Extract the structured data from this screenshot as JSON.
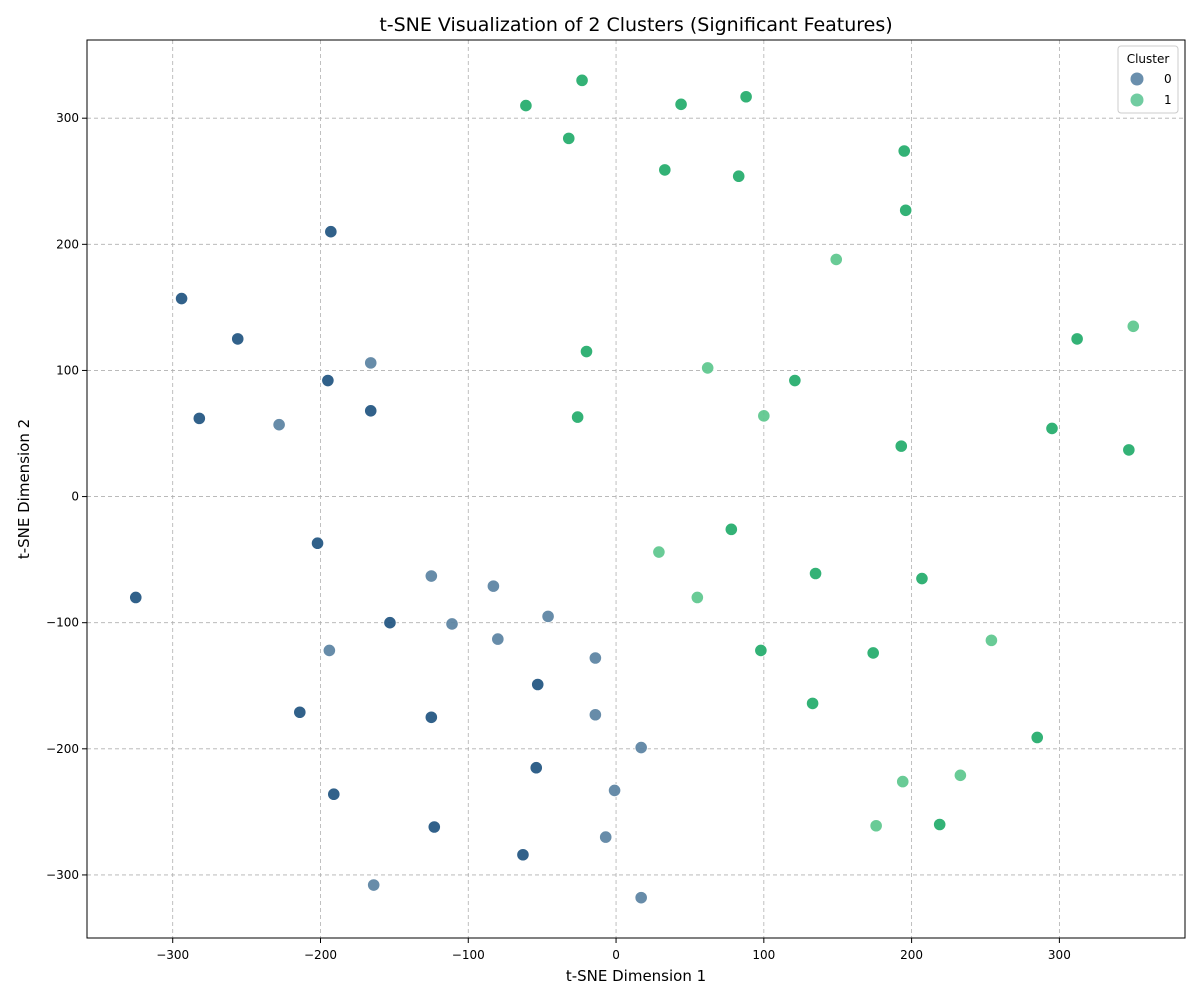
{
  "chart_data": {
    "type": "scatter",
    "title": "t-SNE Visualization of 2 Clusters (Significant Features)",
    "xlabel": "t-SNE Dimension 1",
    "ylabel": "t-SNE Dimension 2",
    "xlim": [
      -358,
      385
    ],
    "ylim": [
      -350,
      362
    ],
    "xticks": [
      -300,
      -200,
      -100,
      0,
      100,
      200,
      300
    ],
    "xtick_labels": [
      "−300",
      "−200",
      "−100",
      "0",
      "100",
      "200",
      "300"
    ],
    "yticks": [
      -300,
      -200,
      -100,
      0,
      100,
      200,
      300
    ],
    "ytick_labels": [
      "−300",
      "−200",
      "−100",
      "0",
      "100",
      "200",
      "300"
    ],
    "grid": true,
    "legend": {
      "title": "Cluster",
      "placement": "top-right",
      "entries": [
        {
          "label": "0",
          "color": "#2b5f8a"
        },
        {
          "label": "1",
          "color": "#35b779"
        }
      ]
    },
    "series": [
      {
        "name": "0",
        "color": "#2b5f8a",
        "points": [
          {
            "x": -193,
            "y": 210,
            "shade": "dark"
          },
          {
            "x": -294,
            "y": 157,
            "shade": "dark"
          },
          {
            "x": -256,
            "y": 125,
            "shade": "dark"
          },
          {
            "x": -166,
            "y": 106,
            "shade": "light"
          },
          {
            "x": -195,
            "y": 92,
            "shade": "dark"
          },
          {
            "x": -166,
            "y": 68,
            "shade": "dark"
          },
          {
            "x": -282,
            "y": 62,
            "shade": "dark"
          },
          {
            "x": -228,
            "y": 57,
            "shade": "light"
          },
          {
            "x": -202,
            "y": -37,
            "shade": "dark"
          },
          {
            "x": -325,
            "y": -80,
            "shade": "dark"
          },
          {
            "x": -125,
            "y": -63,
            "shade": "light"
          },
          {
            "x": -83,
            "y": -71,
            "shade": "light"
          },
          {
            "x": -153,
            "y": -100,
            "shade": "dark"
          },
          {
            "x": -111,
            "y": -101,
            "shade": "light"
          },
          {
            "x": -46,
            "y": -95,
            "shade": "light"
          },
          {
            "x": -80,
            "y": -113,
            "shade": "light"
          },
          {
            "x": -194,
            "y": -122,
            "shade": "light"
          },
          {
            "x": -14,
            "y": -128,
            "shade": "light"
          },
          {
            "x": -53,
            "y": -149,
            "shade": "dark"
          },
          {
            "x": -214,
            "y": -171,
            "shade": "dark"
          },
          {
            "x": -125,
            "y": -175,
            "shade": "dark"
          },
          {
            "x": -14,
            "y": -173,
            "shade": "light"
          },
          {
            "x": 17,
            "y": -199,
            "shade": "light"
          },
          {
            "x": -54,
            "y": -215,
            "shade": "dark"
          },
          {
            "x": -191,
            "y": -236,
            "shade": "dark"
          },
          {
            "x": -1,
            "y": -233,
            "shade": "light"
          },
          {
            "x": -123,
            "y": -262,
            "shade": "dark"
          },
          {
            "x": -7,
            "y": -270,
            "shade": "light"
          },
          {
            "x": -63,
            "y": -284,
            "shade": "dark"
          },
          {
            "x": -164,
            "y": -308,
            "shade": "light"
          },
          {
            "x": 17,
            "y": -318,
            "shade": "light"
          }
        ]
      },
      {
        "name": "1",
        "color": "#35b779",
        "points": [
          {
            "x": -23,
            "y": 330,
            "shade": "dark"
          },
          {
            "x": -61,
            "y": 310,
            "shade": "dark"
          },
          {
            "x": 44,
            "y": 311,
            "shade": "dark"
          },
          {
            "x": 88,
            "y": 317,
            "shade": "dark"
          },
          {
            "x": -32,
            "y": 284,
            "shade": "dark"
          },
          {
            "x": 33,
            "y": 259,
            "shade": "dark"
          },
          {
            "x": 83,
            "y": 254,
            "shade": "dark"
          },
          {
            "x": 195,
            "y": 274,
            "shade": "dark"
          },
          {
            "x": 196,
            "y": 227,
            "shade": "dark"
          },
          {
            "x": 149,
            "y": 188,
            "shade": "light"
          },
          {
            "x": 350,
            "y": 135,
            "shade": "light"
          },
          {
            "x": 312,
            "y": 125,
            "shade": "dark"
          },
          {
            "x": -20,
            "y": 115,
            "shade": "dark"
          },
          {
            "x": 62,
            "y": 102,
            "shade": "light"
          },
          {
            "x": 121,
            "y": 92,
            "shade": "dark"
          },
          {
            "x": 100,
            "y": 64,
            "shade": "light"
          },
          {
            "x": -26,
            "y": 63,
            "shade": "dark"
          },
          {
            "x": 295,
            "y": 54,
            "shade": "dark"
          },
          {
            "x": 193,
            "y": 40,
            "shade": "dark"
          },
          {
            "x": 347,
            "y": 37,
            "shade": "dark"
          },
          {
            "x": 78,
            "y": -26,
            "shade": "dark"
          },
          {
            "x": 29,
            "y": -44,
            "shade": "light"
          },
          {
            "x": 135,
            "y": -61,
            "shade": "dark"
          },
          {
            "x": 207,
            "y": -65,
            "shade": "dark"
          },
          {
            "x": 55,
            "y": -80,
            "shade": "light"
          },
          {
            "x": 254,
            "y": -114,
            "shade": "light"
          },
          {
            "x": 98,
            "y": -122,
            "shade": "dark"
          },
          {
            "x": 174,
            "y": -124,
            "shade": "dark"
          },
          {
            "x": 133,
            "y": -164,
            "shade": "dark"
          },
          {
            "x": 285,
            "y": -191,
            "shade": "dark"
          },
          {
            "x": 233,
            "y": -221,
            "shade": "light"
          },
          {
            "x": 194,
            "y": -226,
            "shade": "light"
          },
          {
            "x": 176,
            "y": -261,
            "shade": "light"
          },
          {
            "x": 219,
            "y": -260,
            "shade": "dark"
          }
        ]
      }
    ]
  }
}
